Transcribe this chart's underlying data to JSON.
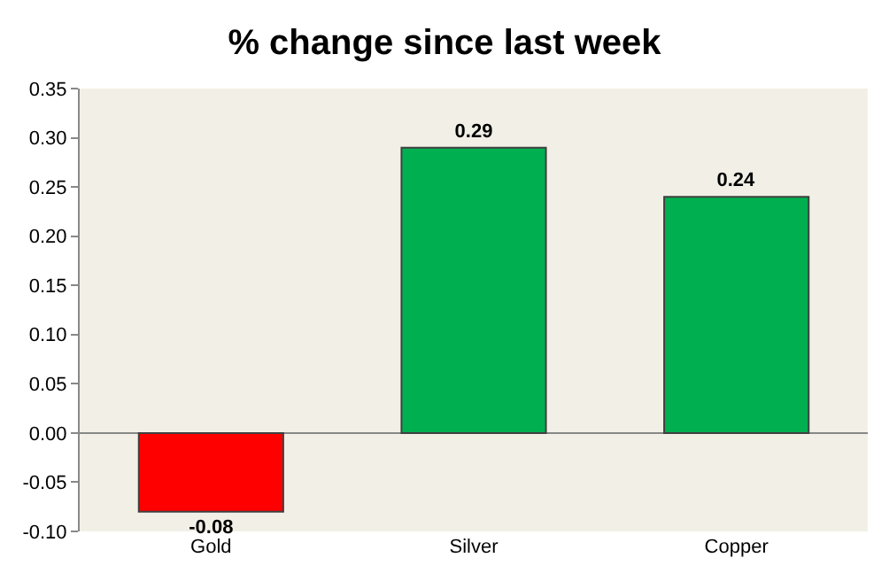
{
  "chart_data": {
    "type": "bar",
    "title": "% change since last week",
    "categories": [
      "Gold",
      "Silver",
      "Copper"
    ],
    "values": [
      -0.08,
      0.29,
      0.24
    ],
    "colors": [
      "#ff0000",
      "#00b050",
      "#00b050"
    ],
    "ylim": [
      -0.1,
      0.35
    ],
    "yticks": [
      {
        "value": 0.35,
        "label": "0.35"
      },
      {
        "value": 0.3,
        "label": "0.30"
      },
      {
        "value": 0.25,
        "label": "0.25"
      },
      {
        "value": 0.2,
        "label": "0.20"
      },
      {
        "value": 0.15,
        "label": "0.15"
      },
      {
        "value": 0.1,
        "label": "0.10"
      },
      {
        "value": 0.05,
        "label": "0.05"
      },
      {
        "value": 0,
        "label": "0.00"
      },
      {
        "value": -0.05,
        "label": "-0.05"
      },
      {
        "value": -0.1,
        "label": "-0.10"
      }
    ],
    "data_labels": true,
    "legend": false
  }
}
